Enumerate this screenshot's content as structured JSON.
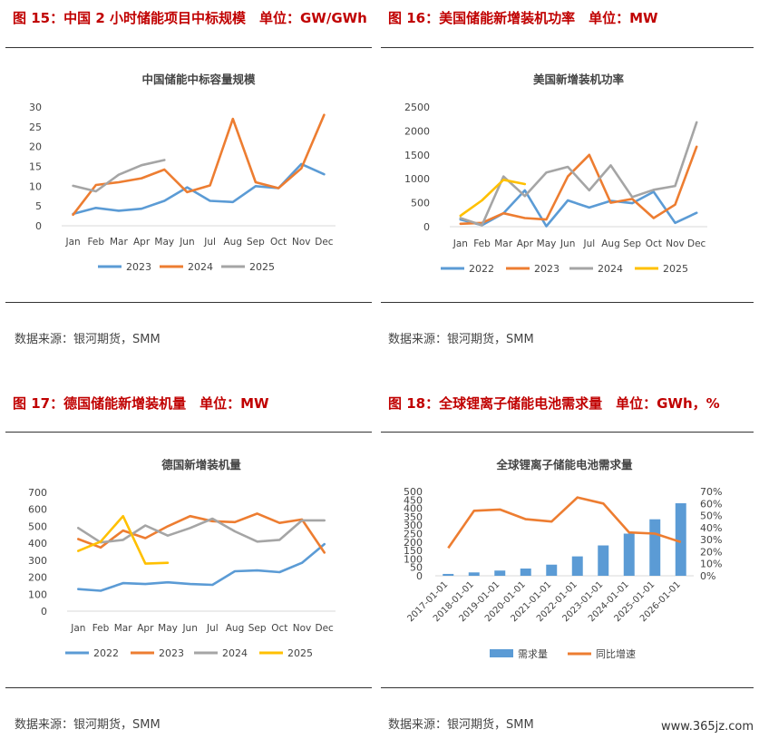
{
  "panels": [
    {
      "heading": "图 15：中国 2 小时储能项目中标规模　单位：GW/GWh",
      "source": "数据来源：银河期货，SMM"
    },
    {
      "heading": "图 16：美国储能新增装机功率　单位：MW",
      "source": "数据来源：银河期货，SMM"
    },
    {
      "heading": "图 17：德国储能新增装机量　单位：MW",
      "source": "数据来源：银河期货，SMM"
    },
    {
      "heading": "图 18：全球锂离子储能电池需求量　单位：GWh，%",
      "source": "数据来源：银河期货，SMM"
    }
  ],
  "watermark": "www.365jz.com",
  "chart_data": [
    {
      "type": "line",
      "title": "中国储能中标容量规模",
      "categories": [
        "Jan",
        "Feb",
        "Mar",
        "Apr",
        "May",
        "Jun",
        "Jul",
        "Aug",
        "Sep",
        "Oct",
        "Nov",
        "Dec"
      ],
      "ylim": [
        0,
        30
      ],
      "yticks": [
        0,
        5,
        10,
        15,
        20,
        25,
        30
      ],
      "grid": false,
      "legend": "bottom",
      "series": [
        {
          "name": "2023",
          "color": "#5b9bd5",
          "values": [
            3.0,
            4.5,
            3.8,
            4.3,
            6.3,
            9.7,
            6.3,
            6.0,
            10.0,
            9.5,
            15.6,
            13.0
          ]
        },
        {
          "name": "2024",
          "color": "#ed7d31",
          "values": [
            2.8,
            10.3,
            11.0,
            12.0,
            14.2,
            8.5,
            10.2,
            27.0,
            11.0,
            9.5,
            14.5,
            28.0
          ]
        },
        {
          "name": "2025",
          "color": "#a5a5a5",
          "values": [
            10.1,
            8.7,
            12.9,
            15.3,
            16.6,
            null,
            null,
            null,
            null,
            null,
            null,
            null
          ]
        }
      ]
    },
    {
      "type": "line",
      "title": "美国新增装机功率",
      "categories": [
        "Jan",
        "Feb",
        "Mar",
        "Apr",
        "May",
        "Jun",
        "Jul",
        "Aug",
        "Sep",
        "Oct",
        "Nov",
        "Dec"
      ],
      "ylim": [
        0,
        2500
      ],
      "yticks": [
        0,
        500,
        1000,
        1500,
        2000,
        2500
      ],
      "grid": false,
      "legend": "bottom",
      "series": [
        {
          "name": "2022",
          "color": "#5b9bd5",
          "values": [
            150,
            30,
            280,
            760,
            10,
            550,
            400,
            540,
            490,
            730,
            80,
            290
          ]
        },
        {
          "name": "2023",
          "color": "#ed7d31",
          "values": [
            60,
            80,
            280,
            180,
            150,
            1050,
            1500,
            500,
            580,
            180,
            460,
            1670
          ]
        },
        {
          "name": "2024",
          "color": "#a5a5a5",
          "values": [
            180,
            30,
            1050,
            640,
            1130,
            1250,
            760,
            1280,
            620,
            770,
            850,
            2180
          ]
        },
        {
          "name": "2025",
          "color": "#ffc000",
          "values": [
            230,
            550,
            980,
            890,
            null,
            null,
            null,
            null,
            null,
            null,
            null,
            null
          ]
        }
      ]
    },
    {
      "type": "line",
      "title": "德国新增装机量",
      "categories": [
        "Jan",
        "Feb",
        "Mar",
        "Apr",
        "May",
        "Jun",
        "Jul",
        "Aug",
        "Sep",
        "Oct",
        "Nov",
        "Dec"
      ],
      "ylim": [
        0,
        700
      ],
      "yticks": [
        0,
        100,
        200,
        300,
        400,
        500,
        600,
        700
      ],
      "grid": false,
      "legend": "bottom",
      "series": [
        {
          "name": "2022",
          "color": "#5b9bd5",
          "values": [
            130,
            120,
            165,
            160,
            170,
            160,
            155,
            235,
            240,
            230,
            285,
            395
          ]
        },
        {
          "name": "2023",
          "color": "#ed7d31",
          "values": [
            425,
            375,
            475,
            430,
            500,
            560,
            530,
            525,
            575,
            520,
            540,
            345
          ]
        },
        {
          "name": "2024",
          "color": "#a5a5a5",
          "values": [
            490,
            405,
            420,
            505,
            445,
            490,
            545,
            470,
            410,
            420,
            535,
            535
          ]
        },
        {
          "name": "2025",
          "color": "#ffc000",
          "values": [
            355,
            410,
            560,
            280,
            285,
            null,
            null,
            null,
            null,
            null,
            null,
            null
          ]
        }
      ]
    },
    {
      "type": "bar+line",
      "title": "全球锂离子储能电池需求量",
      "categories": [
        "2017-01-01",
        "2018-01-01",
        "2019-01-01",
        "2020-01-01",
        "2021-01-01",
        "2022-01-01",
        "2023-01-01",
        "2024-01-01",
        "2025-01-01",
        "2026-01-01"
      ],
      "ylim": [
        0,
        500
      ],
      "yticks": [
        0,
        50,
        100,
        150,
        200,
        250,
        300,
        350,
        400,
        450,
        500
      ],
      "y2lim": [
        0,
        0.7
      ],
      "y2ticks": [
        "0%",
        "10%",
        "20%",
        "30%",
        "40%",
        "50%",
        "60%",
        "70%"
      ],
      "grid": false,
      "legend": "bottom",
      "series": [
        {
          "name": "需求量",
          "type": "bar",
          "color": "#5b9bd5",
          "values": [
            11,
            20,
            31,
            43,
            66,
            115,
            180,
            250,
            335,
            430
          ]
        },
        {
          "name": "同比增速",
          "type": "line",
          "axis": "right",
          "color": "#ed7d31",
          "values": [
            0.23,
            0.54,
            0.55,
            0.47,
            0.45,
            0.65,
            0.6,
            0.36,
            0.35,
            0.28
          ]
        }
      ]
    }
  ]
}
